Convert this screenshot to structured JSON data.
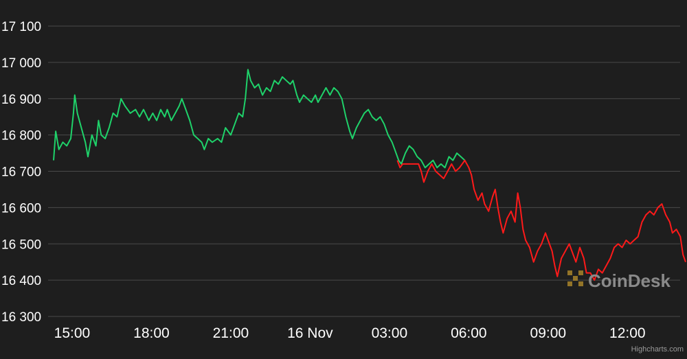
{
  "chart_data": {
    "type": "line",
    "title": "",
    "xlabel": "",
    "ylabel": "",
    "ylim": [
      16300,
      17100
    ],
    "y_ticks": [
      17100,
      17000,
      16900,
      16800,
      16700,
      16600,
      16500,
      16400,
      16300
    ],
    "y_tick_labels": [
      "17 100",
      "17 000",
      "16 900",
      "16 800",
      "16 700",
      "16 600",
      "16 500",
      "16 400",
      "16 300"
    ],
    "x_ticks": [
      {
        "label": "15:00",
        "hours": 0
      },
      {
        "label": "18:00",
        "hours": 3
      },
      {
        "label": "21:00",
        "hours": 6
      },
      {
        "label": "16 Nov",
        "hours": 9
      },
      {
        "label": "03:00",
        "hours": 12
      },
      {
        "label": "06:00",
        "hours": 15
      },
      {
        "label": "09:00",
        "hours": 18
      },
      {
        "label": "12:00",
        "hours": 21
      }
    ],
    "xlim_hours": [
      -0.7,
      23.2
    ],
    "grid": true,
    "colors": {
      "up": "#1fd26a",
      "down": "#ff1a1a",
      "grid": "#4a4a4a",
      "background": "#1e1e1e"
    },
    "series": [
      {
        "color": "up",
        "points": [
          [
            -0.7,
            16730
          ],
          [
            -0.62,
            16810
          ],
          [
            -0.5,
            16760
          ],
          [
            -0.35,
            16780
          ],
          [
            -0.2,
            16770
          ],
          [
            -0.05,
            16790
          ],
          [
            0.05,
            16860
          ],
          [
            0.1,
            16910
          ],
          [
            0.2,
            16860
          ],
          [
            0.35,
            16820
          ],
          [
            0.5,
            16780
          ],
          [
            0.6,
            16740
          ],
          [
            0.75,
            16800
          ],
          [
            0.9,
            16770
          ],
          [
            1.0,
            16840
          ],
          [
            1.1,
            16800
          ],
          [
            1.25,
            16790
          ],
          [
            1.4,
            16820
          ],
          [
            1.55,
            16860
          ],
          [
            1.7,
            16850
          ],
          [
            1.85,
            16900
          ],
          [
            2.0,
            16880
          ],
          [
            2.2,
            16860
          ],
          [
            2.4,
            16870
          ],
          [
            2.55,
            16850
          ],
          [
            2.7,
            16870
          ],
          [
            2.9,
            16840
          ],
          [
            3.05,
            16860
          ],
          [
            3.2,
            16840
          ],
          [
            3.35,
            16870
          ],
          [
            3.5,
            16850
          ],
          [
            3.6,
            16870
          ],
          [
            3.75,
            16840
          ],
          [
            3.9,
            16860
          ],
          [
            4.05,
            16880
          ],
          [
            4.15,
            16900
          ],
          [
            4.3,
            16870
          ],
          [
            4.45,
            16840
          ],
          [
            4.6,
            16800
          ],
          [
            4.75,
            16790
          ],
          [
            4.9,
            16780
          ],
          [
            5.0,
            16760
          ],
          [
            5.15,
            16790
          ],
          [
            5.3,
            16780
          ],
          [
            5.5,
            16790
          ],
          [
            5.65,
            16780
          ],
          [
            5.8,
            16820
          ],
          [
            6.0,
            16800
          ],
          [
            6.15,
            16830
          ],
          [
            6.3,
            16860
          ],
          [
            6.45,
            16850
          ],
          [
            6.55,
            16900
          ],
          [
            6.65,
            16980
          ],
          [
            6.75,
            16950
          ],
          [
            6.9,
            16930
          ],
          [
            7.05,
            16940
          ],
          [
            7.2,
            16910
          ],
          [
            7.35,
            16930
          ],
          [
            7.5,
            16920
          ],
          [
            7.65,
            16950
          ],
          [
            7.8,
            16940
          ],
          [
            7.95,
            16960
          ],
          [
            8.1,
            16950
          ],
          [
            8.25,
            16940
          ],
          [
            8.35,
            16950
          ],
          [
            8.5,
            16910
          ],
          [
            8.6,
            16890
          ],
          [
            8.75,
            16910
          ],
          [
            8.9,
            16900
          ],
          [
            9.05,
            16890
          ],
          [
            9.2,
            16910
          ],
          [
            9.3,
            16890
          ],
          [
            9.45,
            16910
          ],
          [
            9.6,
            16930
          ],
          [
            9.75,
            16910
          ],
          [
            9.9,
            16930
          ],
          [
            10.05,
            16920
          ],
          [
            10.2,
            16900
          ],
          [
            10.35,
            16850
          ],
          [
            10.5,
            16810
          ],
          [
            10.6,
            16790
          ],
          [
            10.75,
            16820
          ],
          [
            10.9,
            16840
          ],
          [
            11.05,
            16860
          ],
          [
            11.2,
            16870
          ],
          [
            11.35,
            16850
          ],
          [
            11.5,
            16840
          ],
          [
            11.65,
            16850
          ],
          [
            11.8,
            16830
          ],
          [
            11.95,
            16800
          ],
          [
            12.1,
            16780
          ],
          [
            12.2,
            16760
          ],
          [
            12.35,
            16730
          ],
          [
            12.45,
            16720
          ],
          [
            12.6,
            16750
          ],
          [
            12.75,
            16770
          ],
          [
            12.9,
            16760
          ],
          [
            13.05,
            16740
          ],
          [
            13.2,
            16730
          ],
          [
            13.35,
            16710
          ],
          [
            13.5,
            16720
          ],
          [
            13.65,
            16730
          ],
          [
            13.8,
            16710
          ],
          [
            13.95,
            16720
          ],
          [
            14.1,
            16710
          ],
          [
            14.25,
            16740
          ],
          [
            14.4,
            16730
          ],
          [
            14.55,
            16750
          ],
          [
            14.7,
            16740
          ],
          [
            14.85,
            16730
          ]
        ]
      },
      {
        "color": "down",
        "points": [
          [
            12.3,
            16730
          ],
          [
            12.4,
            16710
          ],
          [
            12.5,
            16720
          ],
          [
            13.1,
            16720
          ],
          [
            13.2,
            16700
          ],
          [
            13.3,
            16670
          ],
          [
            13.45,
            16700
          ],
          [
            13.6,
            16720
          ],
          [
            13.75,
            16700
          ],
          [
            13.9,
            16690
          ],
          [
            14.05,
            16680
          ],
          [
            14.2,
            16700
          ],
          [
            14.35,
            16720
          ],
          [
            14.5,
            16700
          ],
          [
            14.65,
            16710
          ],
          [
            14.85,
            16730
          ],
          [
            15.0,
            16710
          ],
          [
            15.1,
            16690
          ],
          [
            15.2,
            16650
          ],
          [
            15.35,
            16620
          ],
          [
            15.5,
            16640
          ],
          [
            15.6,
            16610
          ],
          [
            15.75,
            16590
          ],
          [
            15.9,
            16630
          ],
          [
            16.0,
            16650
          ],
          [
            16.1,
            16600
          ],
          [
            16.2,
            16560
          ],
          [
            16.3,
            16530
          ],
          [
            16.45,
            16570
          ],
          [
            16.6,
            16590
          ],
          [
            16.75,
            16560
          ],
          [
            16.85,
            16640
          ],
          [
            16.95,
            16600
          ],
          [
            17.05,
            16540
          ],
          [
            17.15,
            16510
          ],
          [
            17.3,
            16490
          ],
          [
            17.45,
            16450
          ],
          [
            17.6,
            16480
          ],
          [
            17.75,
            16500
          ],
          [
            17.9,
            16530
          ],
          [
            18.0,
            16510
          ],
          [
            18.15,
            16480
          ],
          [
            18.25,
            16440
          ],
          [
            18.35,
            16410
          ],
          [
            18.5,
            16460
          ],
          [
            18.65,
            16480
          ],
          [
            18.8,
            16500
          ],
          [
            18.95,
            16470
          ],
          [
            19.05,
            16450
          ],
          [
            19.2,
            16490
          ],
          [
            19.35,
            16460
          ],
          [
            19.45,
            16420
          ],
          [
            19.6,
            16420
          ],
          [
            19.75,
            16400
          ],
          [
            19.9,
            16430
          ],
          [
            20.05,
            16420
          ],
          [
            20.2,
            16440
          ],
          [
            20.35,
            16460
          ],
          [
            20.5,
            16490
          ],
          [
            20.65,
            16500
          ],
          [
            20.8,
            16490
          ],
          [
            20.95,
            16510
          ],
          [
            21.1,
            16500
          ],
          [
            21.25,
            16510
          ],
          [
            21.4,
            16520
          ],
          [
            21.55,
            16560
          ],
          [
            21.7,
            16580
          ],
          [
            21.85,
            16590
          ],
          [
            22.0,
            16580
          ],
          [
            22.15,
            16600
          ],
          [
            22.3,
            16610
          ],
          [
            22.45,
            16580
          ],
          [
            22.6,
            16560
          ],
          [
            22.7,
            16530
          ],
          [
            22.85,
            16540
          ],
          [
            23.0,
            16520
          ],
          [
            23.1,
            16470
          ],
          [
            23.2,
            16450
          ]
        ]
      }
    ],
    "watermark": "CoinDesk",
    "credit": "Highcharts.com"
  }
}
